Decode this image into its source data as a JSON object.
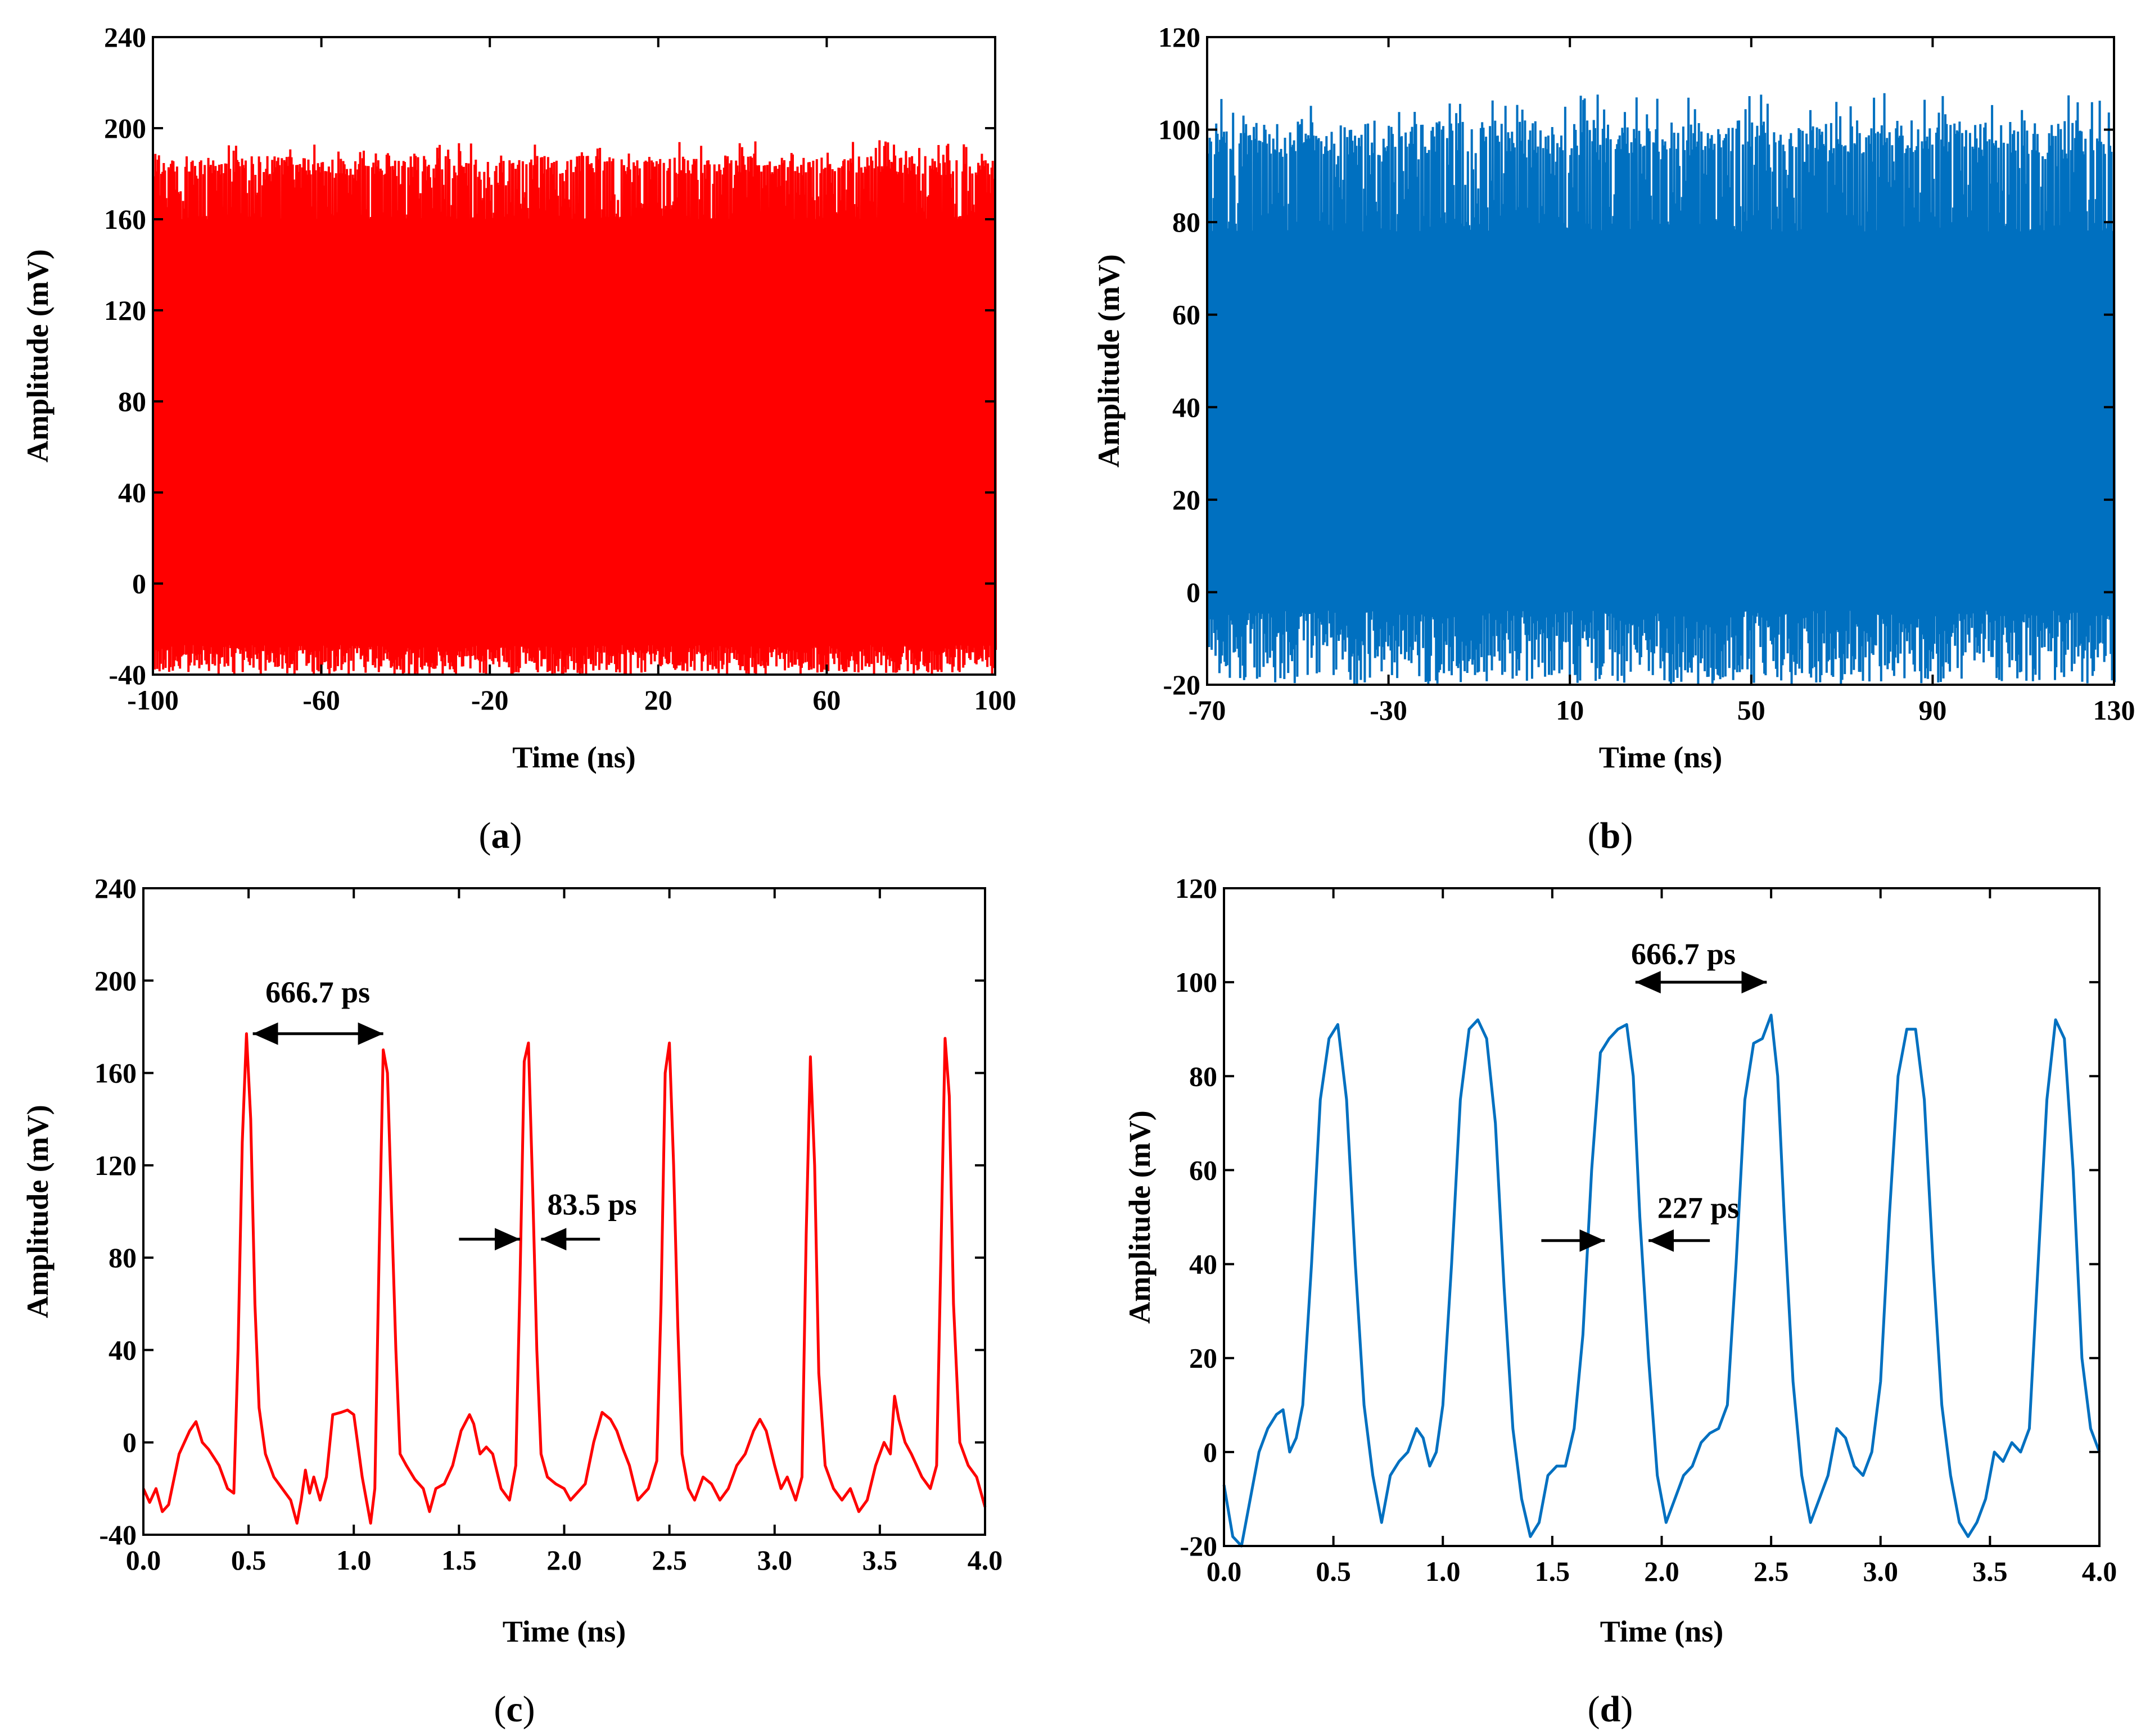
{
  "figure": {
    "panels": [
      {
        "id": "a",
        "caption_open": "(",
        "caption_letter": "a",
        "caption_close": ")"
      },
      {
        "id": "b",
        "caption_open": "(",
        "caption_letter": "b",
        "caption_close": ")"
      },
      {
        "id": "c",
        "caption_open": "(",
        "caption_letter": "c",
        "caption_close": ")"
      },
      {
        "id": "d",
        "caption_open": "(",
        "caption_letter": "d",
        "caption_close": ")"
      }
    ]
  },
  "chart_data": [
    {
      "id": "a",
      "type": "line",
      "style": "dense-noise",
      "color": "#ff0000",
      "title": "",
      "xlabel": "Time (ns)",
      "ylabel": "Amplitude (mV)",
      "xlim": [
        -100,
        100
      ],
      "ylim": [
        -40,
        240
      ],
      "xticks": [
        -100,
        -60,
        -20,
        20,
        60,
        100
      ],
      "xtick_labels": [
        "-100",
        "-60",
        "-20",
        "20",
        "60",
        "100"
      ],
      "yticks": [
        -40,
        0,
        40,
        80,
        120,
        160,
        200,
        240
      ],
      "ytick_labels": [
        "-40",
        "0",
        "40",
        "80",
        "120",
        "160",
        "200",
        "240"
      ],
      "signal": {
        "peak_min": 160,
        "peak_max": 195,
        "trough_min": -40,
        "trough_max": -27,
        "samples": 700
      },
      "annotations": []
    },
    {
      "id": "b",
      "type": "line",
      "style": "dense-noise",
      "color": "#0070c0",
      "title": "",
      "xlabel": "Time (ns)",
      "ylabel": "Amplitude (mV)",
      "xlim": [
        -70,
        130
      ],
      "ylim": [
        -20,
        120
      ],
      "xticks": [
        -70,
        -30,
        10,
        50,
        90,
        130
      ],
      "xtick_labels": [
        "-70",
        "-30",
        "10",
        "50",
        "90",
        "130"
      ],
      "yticks": [
        -20,
        0,
        20,
        40,
        60,
        80,
        100,
        120
      ],
      "ytick_labels": [
        "-20",
        "0",
        "20",
        "40",
        "60",
        "80",
        "100",
        "120"
      ],
      "signal": {
        "peak_min": 78,
        "peak_max": 108,
        "trough_min": -20,
        "trough_max": -4,
        "samples": 700
      },
      "annotations": []
    },
    {
      "id": "c",
      "type": "line",
      "style": "pulse-train",
      "color": "#ff0000",
      "title": "",
      "xlabel": "Time (ns)",
      "ylabel": "Amplitude (mV)",
      "xlim": [
        0,
        4
      ],
      "ylim": [
        -40,
        240
      ],
      "xticks": [
        0,
        0.5,
        1,
        1.5,
        2,
        2.5,
        3,
        3.5,
        4
      ],
      "xtick_labels": [
        "0.0",
        "0.5",
        "1.0",
        "1.5",
        "2.0",
        "2.5",
        "3.0",
        "3.5",
        "4.0"
      ],
      "yticks": [
        -40,
        0,
        40,
        80,
        120,
        160,
        200,
        240
      ],
      "ytick_labels": [
        "-40",
        "0",
        "40",
        "80",
        "120",
        "160",
        "200",
        "240"
      ],
      "series": [
        {
          "name": "pulse train",
          "x": [
            0.0,
            0.03,
            0.06,
            0.09,
            0.12,
            0.17,
            0.22,
            0.25,
            0.28,
            0.31,
            0.36,
            0.4,
            0.43,
            0.45,
            0.47,
            0.49,
            0.51,
            0.53,
            0.55,
            0.58,
            0.62,
            0.66,
            0.7,
            0.73,
            0.75,
            0.77,
            0.79,
            0.81,
            0.84,
            0.87,
            0.9,
            0.94,
            0.97,
            1.0,
            1.04,
            1.08,
            1.1,
            1.12,
            1.14,
            1.16,
            1.18,
            1.2,
            1.22,
            1.25,
            1.29,
            1.33,
            1.36,
            1.39,
            1.43,
            1.47,
            1.51,
            1.55,
            1.57,
            1.6,
            1.63,
            1.66,
            1.7,
            1.74,
            1.77,
            1.79,
            1.81,
            1.83,
            1.85,
            1.87,
            1.89,
            1.92,
            1.96,
            2.0,
            2.03,
            2.06,
            2.1,
            2.14,
            2.18,
            2.22,
            2.25,
            2.28,
            2.31,
            2.35,
            2.4,
            2.44,
            2.46,
            2.48,
            2.5,
            2.52,
            2.54,
            2.56,
            2.59,
            2.62,
            2.66,
            2.7,
            2.74,
            2.78,
            2.82,
            2.86,
            2.9,
            2.93,
            2.96,
            3.0,
            3.03,
            3.06,
            3.1,
            3.13,
            3.15,
            3.17,
            3.19,
            3.21,
            3.24,
            3.28,
            3.32,
            3.36,
            3.4,
            3.44,
            3.48,
            3.52,
            3.55,
            3.57,
            3.59,
            3.62,
            3.65,
            3.7,
            3.74,
            3.77,
            3.79,
            3.81,
            3.83,
            3.85,
            3.88,
            3.92,
            3.96,
            4.0
          ],
          "y": [
            -20,
            -26,
            -20,
            -30,
            -27,
            -5,
            5,
            9,
            0,
            -3,
            -10,
            -20,
            -22,
            40,
            130,
            177,
            140,
            60,
            15,
            -5,
            -15,
            -20,
            -25,
            -35,
            -25,
            -12,
            -22,
            -15,
            -25,
            -15,
            12,
            13,
            14,
            12,
            -15,
            -35,
            -20,
            80,
            170,
            160,
            100,
            40,
            -5,
            -10,
            -16,
            -20,
            -30,
            -20,
            -18,
            -10,
            5,
            12,
            8,
            -5,
            -2,
            -5,
            -20,
            -25,
            -10,
            70,
            165,
            173,
            110,
            40,
            -5,
            -15,
            -18,
            -20,
            -25,
            -22,
            -18,
            0,
            13,
            10,
            5,
            -3,
            -10,
            -25,
            -20,
            -8,
            60,
            160,
            173,
            120,
            50,
            -5,
            -20,
            -25,
            -15,
            -18,
            -25,
            -20,
            -10,
            -5,
            5,
            10,
            5,
            -10,
            -20,
            -15,
            -25,
            -15,
            90,
            167,
            120,
            30,
            -10,
            -20,
            -25,
            -20,
            -30,
            -25,
            -10,
            0,
            -5,
            20,
            10,
            0,
            -5,
            -15,
            -20,
            -10,
            80,
            175,
            150,
            60,
            0,
            -10,
            -15,
            -28
          ]
        }
      ],
      "annotations": [
        {
          "text": "666.7 ps",
          "type": "double-arrow",
          "x1": 0.52,
          "x2": 1.14,
          "y": 177,
          "text_x": 0.58,
          "text_y": 195
        },
        {
          "text": "83.5 ps",
          "type": "inward-arrows",
          "left_from": 1.5,
          "left_to": 1.79,
          "right_from": 2.17,
          "right_to": 1.89,
          "y": 88,
          "text_x": 1.92,
          "text_y": 103
        }
      ]
    },
    {
      "id": "d",
      "type": "line",
      "style": "pulse-train",
      "color": "#0070c0",
      "title": "",
      "xlabel": "Time (ns)",
      "ylabel": "Amplitude (mV)",
      "xlim": [
        0,
        4
      ],
      "ylim": [
        -20,
        120
      ],
      "xticks": [
        0,
        0.5,
        1,
        1.5,
        2,
        2.5,
        3,
        3.5,
        4
      ],
      "xtick_labels": [
        "0.0",
        "0.5",
        "1.0",
        "1.5",
        "2.0",
        "2.5",
        "3.0",
        "3.5",
        "4.0"
      ],
      "yticks": [
        -20,
        0,
        20,
        40,
        60,
        80,
        100,
        120
      ],
      "ytick_labels": [
        "-20",
        "0",
        "20",
        "40",
        "60",
        "80",
        "100",
        "120"
      ],
      "series": [
        {
          "name": "pulse train",
          "x": [
            0.0,
            0.04,
            0.08,
            0.12,
            0.16,
            0.2,
            0.24,
            0.27,
            0.3,
            0.33,
            0.36,
            0.4,
            0.44,
            0.48,
            0.52,
            0.56,
            0.6,
            0.64,
            0.68,
            0.72,
            0.76,
            0.8,
            0.84,
            0.88,
            0.91,
            0.94,
            0.97,
            1.0,
            1.04,
            1.08,
            1.12,
            1.16,
            1.2,
            1.24,
            1.28,
            1.32,
            1.36,
            1.4,
            1.44,
            1.48,
            1.52,
            1.56,
            1.6,
            1.64,
            1.68,
            1.72,
            1.76,
            1.8,
            1.84,
            1.87,
            1.9,
            1.94,
            1.98,
            2.02,
            2.06,
            2.1,
            2.14,
            2.18,
            2.22,
            2.26,
            2.3,
            2.34,
            2.38,
            2.42,
            2.46,
            2.5,
            2.53,
            2.56,
            2.6,
            2.64,
            2.68,
            2.72,
            2.76,
            2.8,
            2.84,
            2.88,
            2.92,
            2.96,
            3.0,
            3.04,
            3.08,
            3.12,
            3.16,
            3.2,
            3.24,
            3.28,
            3.32,
            3.36,
            3.4,
            3.44,
            3.48,
            3.52,
            3.56,
            3.6,
            3.64,
            3.68,
            3.72,
            3.76,
            3.8,
            3.84,
            3.88,
            3.92,
            3.96,
            4.0
          ],
          "y": [
            -7,
            -18,
            -20,
            -10,
            0,
            5,
            8,
            9,
            0,
            3,
            10,
            40,
            75,
            88,
            91,
            75,
            40,
            10,
            -5,
            -15,
            -5,
            -2,
            0,
            5,
            3,
            -3,
            0,
            10,
            40,
            75,
            90,
            92,
            88,
            70,
            35,
            5,
            -10,
            -18,
            -15,
            -5,
            -3,
            -3,
            5,
            25,
            60,
            85,
            88,
            90,
            91,
            80,
            50,
            20,
            -5,
            -15,
            -10,
            -5,
            -3,
            2,
            4,
            5,
            10,
            40,
            75,
            87,
            88,
            93,
            80,
            50,
            15,
            -5,
            -15,
            -10,
            -5,
            5,
            3,
            -3,
            -5,
            0,
            15,
            50,
            80,
            90,
            90,
            75,
            40,
            10,
            -5,
            -15,
            -18,
            -15,
            -10,
            0,
            -2,
            2,
            0,
            5,
            40,
            75,
            92,
            88,
            60,
            20,
            5,
            0
          ],
          "color": "#0070c0"
        }
      ],
      "annotations": [
        {
          "text": "666.7 ps",
          "type": "double-arrow",
          "x1": 1.88,
          "x2": 2.48,
          "y": 100,
          "text_x": 1.86,
          "text_y": 106
        },
        {
          "text": "227 ps",
          "type": "inward-arrows",
          "left_from": 1.45,
          "left_to": 1.74,
          "right_from": 2.22,
          "right_to": 1.94,
          "y": 45,
          "text_x": 1.98,
          "text_y": 52
        }
      ]
    }
  ]
}
